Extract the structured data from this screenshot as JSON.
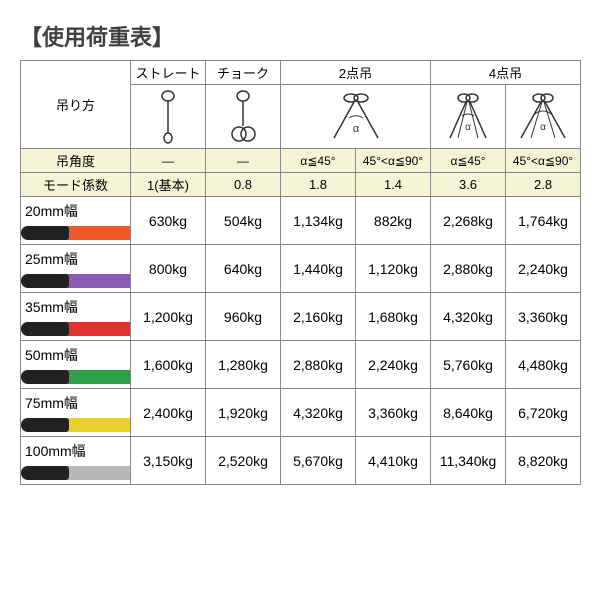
{
  "title": "【使用荷重表】",
  "header": {
    "lifting_label": "吊り方",
    "methods": [
      "ストレート",
      "チョーク",
      "2点吊",
      "4点吊"
    ]
  },
  "angle_row": {
    "label": "吊角度",
    "cells": [
      "—",
      "—",
      "α≦45°",
      "45°<α≦90°",
      "α≦45°",
      "45°<α≦90°"
    ]
  },
  "coef_row": {
    "label": "モード係数",
    "cells": [
      "1(基本)",
      "0.8",
      "1.8",
      "1.4",
      "3.6",
      "2.8"
    ]
  },
  "rows": [
    {
      "label": "20mm幅",
      "color": "#f05a28",
      "values": [
        "630kg",
        "504kg",
        "1,134kg",
        "882kg",
        "2,268kg",
        "1,764kg"
      ]
    },
    {
      "label": "25mm幅",
      "color": "#8a5ab5",
      "values": [
        "800kg",
        "640kg",
        "1,440kg",
        "1,120kg",
        "2,880kg",
        "2,240kg"
      ]
    },
    {
      "label": "35mm幅",
      "color": "#e53030",
      "values": [
        "1,200kg",
        "960kg",
        "2,160kg",
        "1,680kg",
        "4,320kg",
        "3,360kg"
      ]
    },
    {
      "label": "50mm幅",
      "color": "#2e9e4a",
      "values": [
        "1,600kg",
        "1,280kg",
        "2,880kg",
        "2,240kg",
        "5,760kg",
        "4,480kg"
      ]
    },
    {
      "label": "75mm幅",
      "color": "#e8d22a",
      "values": [
        "2,400kg",
        "1,920kg",
        "4,320kg",
        "3,360kg",
        "8,640kg",
        "6,720kg"
      ]
    },
    {
      "label": "100mm幅",
      "color": "#b8b8b8",
      "values": [
        "3,150kg",
        "2,520kg",
        "5,670kg",
        "4,410kg",
        "11,340kg",
        "8,820kg"
      ]
    }
  ],
  "colors": {
    "header_bg": "#f5f3d6",
    "border": "#888888",
    "text": "#333333"
  }
}
